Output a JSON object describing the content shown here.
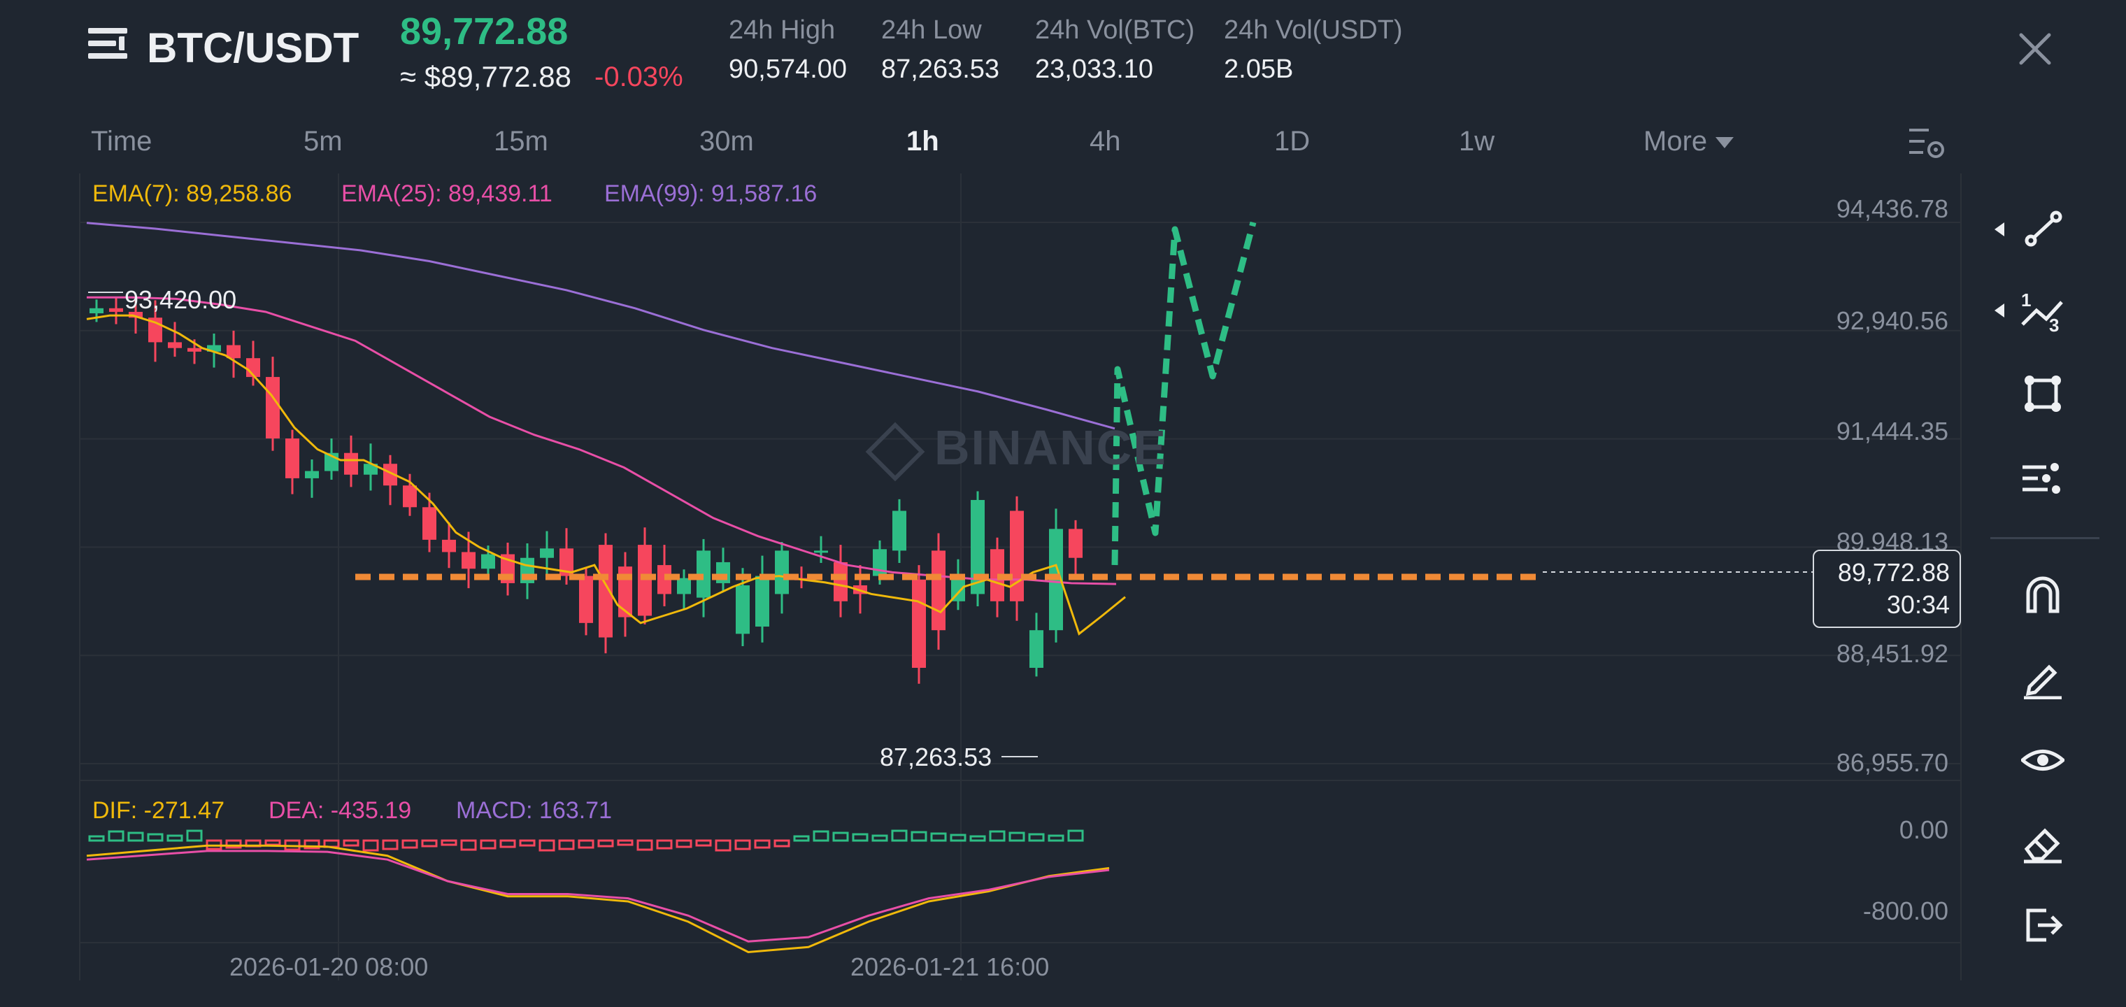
{
  "header": {
    "pair": "BTC/USDT",
    "last_price": "89,772.88",
    "price_usd": "≈ $89,772.88",
    "change": "-0.03%",
    "stats": [
      {
        "label": "24h High",
        "value": "90,574.00"
      },
      {
        "label": "24h Low",
        "value": "87,263.53"
      },
      {
        "label": "24h Vol(BTC)",
        "value": "23,033.10"
      },
      {
        "label": "24h Vol(USDT)",
        "value": "2.05B"
      }
    ]
  },
  "timeframes": [
    "Time",
    "5m",
    "15m",
    "30m",
    "1h",
    "4h",
    "1D",
    "1w",
    "More"
  ],
  "active_timeframe": "1h",
  "indicators": {
    "ema7": "EMA(7): 89,258.86",
    "ema25": "EMA(25): 89,439.11",
    "ema99": "EMA(99): 91,587.16",
    "dif": "DIF: -271.47",
    "dea": "DEA: -435.19",
    "macd": "MACD: 163.71"
  },
  "price_axis": [
    "94,436.78",
    "92,940.56",
    "91,444.35",
    "89,948.13",
    "88,451.92",
    "86,955.70"
  ],
  "macd_axis": [
    "0.00",
    "-800.00"
  ],
  "date_axis": [
    "2026-01-20 08:00",
    "2026-01-21 16:00"
  ],
  "high_marker": "93,420.00",
  "low_marker": "87,263.53",
  "current_tag": {
    "price": "89,772.88",
    "countdown": "30:34"
  },
  "watermark": "BINANCE",
  "colors": {
    "up": "#2ebd85",
    "down": "#f6465d",
    "ema7": "#f0b90b",
    "ema25": "#e84fa7",
    "ema99": "#9b6fd6",
    "drawing_level": "#f08a36",
    "drawing_projection": "#2ebd85"
  },
  "tools": [
    "trend-line-icon",
    "fibonacci-icon",
    "rectangle-icon",
    "parallel-channel-icon",
    "magnet-icon",
    "brush-icon",
    "eye-icon",
    "eraser-icon",
    "exit-icon"
  ],
  "chart_data": {
    "type": "candlestick",
    "timeframe": "1h",
    "ylim": [
      86955.7,
      94436.78
    ],
    "open": [
      93180,
      93250,
      93200,
      93120,
      92780,
      92700,
      92650,
      92740,
      92560,
      92300,
      91450,
      90900,
      91000,
      91250,
      90950,
      91100,
      90800,
      90500,
      90050,
      89880,
      89650,
      89850,
      89450,
      89800,
      89930,
      89550,
      89980,
      89680,
      89980,
      89700,
      89300,
      89250,
      89450,
      88750,
      88850,
      89300,
      89520,
      89900,
      89740,
      89420,
      89550,
      89900,
      89500,
      89900,
      89200,
      89300,
      89920,
      90450,
      88280,
      88800,
      90200
    ],
    "close": [
      93250,
      93200,
      93120,
      92780,
      92700,
      92650,
      92740,
      92560,
      92300,
      91450,
      90900,
      91000,
      91250,
      90950,
      91100,
      90800,
      90500,
      90050,
      89880,
      89650,
      89850,
      89450,
      89800,
      89930,
      89550,
      88900,
      88700,
      88980,
      89000,
      89300,
      89520,
      89900,
      89740,
      89420,
      89550,
      89900,
      89500,
      89900,
      89200,
      89300,
      89920,
      90450,
      88280,
      88800,
      89500,
      90600,
      89200,
      89200,
      88800,
      90200,
      89800
    ],
    "ema7": [
      93100,
      93150,
      93150,
      93050,
      92900,
      92700,
      92600,
      92400,
      92050,
      91600,
      91300,
      91150,
      91150,
      91000,
      90850,
      90550,
      90150,
      89950,
      89800,
      89700,
      89650,
      89600,
      89700,
      89150,
      88900,
      89000,
      89100,
      89250,
      89400,
      89520,
      89550,
      89500,
      89460,
      89400,
      89300,
      89250,
      89200,
      89050,
      89400,
      89500,
      89400,
      89600,
      89700,
      88750,
      89000,
      89259
    ],
    "ema25": [
      93400,
      93400,
      93380,
      93300,
      93200,
      93000,
      92800,
      92450,
      92100,
      91750,
      91500,
      91300,
      91050,
      90700,
      90350,
      90100,
      89900,
      89700,
      89600,
      89550,
      89500,
      89500,
      89450,
      89439
    ],
    "ema99": [
      94430,
      94350,
      94250,
      94150,
      94050,
      93900,
      93700,
      93500,
      93250,
      92950,
      92700,
      92500,
      92300,
      92100,
      91850,
      91587
    ],
    "price_level_drawn": 89772.88,
    "macd_dif": [
      -150,
      -100,
      -50,
      -50,
      -60,
      -150,
      -400,
      -550,
      -550,
      -600,
      -800,
      -1100,
      -1050,
      -800,
      -600,
      -500,
      -350,
      -271.47
    ]
  }
}
